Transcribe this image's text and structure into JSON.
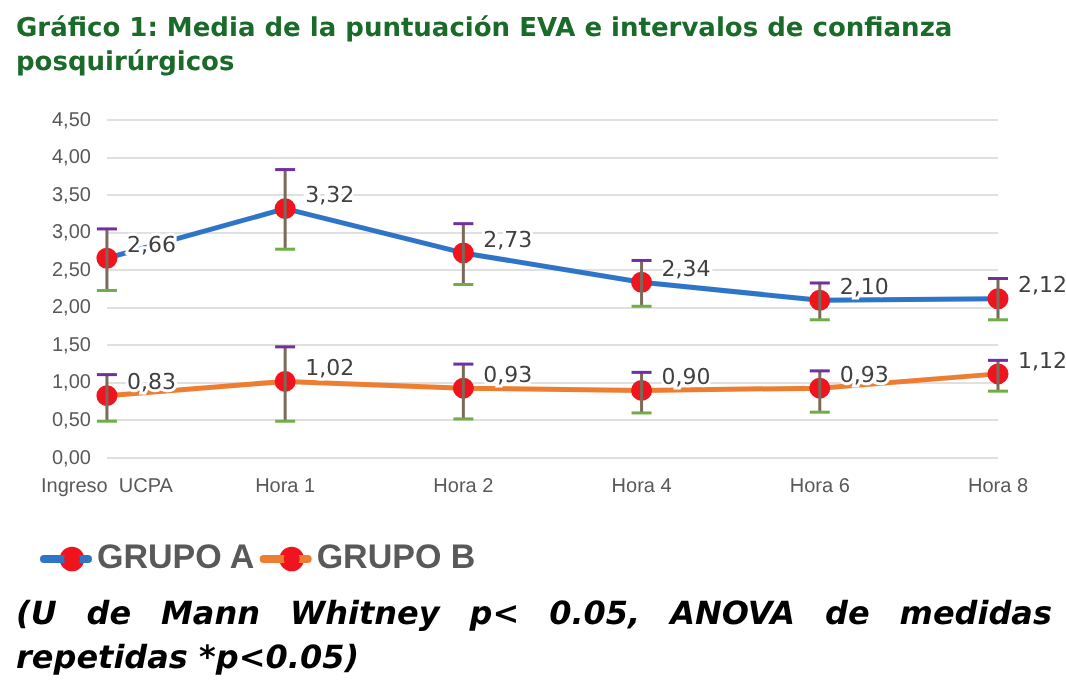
{
  "chart_data": {
    "type": "line",
    "title": "Gráfico 1: Media de la puntuación EVA e intervalos de confianza posquirúrgicos",
    "categories": [
      "Ingreso  UCPA",
      "Hora 1",
      "Hora 2",
      "Hora 4",
      "Hora 6",
      "Hora 8"
    ],
    "series": [
      {
        "name": "GRUPO A",
        "color": "#2e75c8",
        "values": [
          2.66,
          3.32,
          2.73,
          2.34,
          2.1,
          2.12
        ],
        "value_labels": [
          "2,66",
          "3,32",
          "2,73",
          "2,34",
          "2,10",
          "2,12"
        ],
        "errors": [
          [
            2.23,
            3.05
          ],
          [
            2.78,
            3.84
          ],
          [
            2.31,
            3.12
          ],
          [
            2.02,
            2.63
          ],
          [
            1.84,
            2.33
          ],
          [
            1.84,
            2.39
          ]
        ]
      },
      {
        "name": "GRUPO B",
        "color": "#ed7d31",
        "values": [
          0.83,
          1.02,
          0.93,
          0.9,
          0.93,
          1.12
        ],
        "value_labels": [
          "0,83",
          "1,02",
          "0,93",
          "0,90",
          "0,93",
          "1,12"
        ],
        "errors": [
          [
            0.49,
            1.11
          ],
          [
            0.49,
            1.48
          ],
          [
            0.52,
            1.25
          ],
          [
            0.6,
            1.14
          ],
          [
            0.61,
            1.16
          ],
          [
            0.89,
            1.3
          ]
        ]
      }
    ],
    "ylim": [
      0,
      4.5
    ],
    "yticks": [
      {
        "value": 0,
        "label": "0,00"
      },
      {
        "value": 0.5,
        "label": "0,50"
      },
      {
        "value": 1,
        "label": "1,00"
      },
      {
        "value": 1.5,
        "label": "1,50"
      },
      {
        "value": 2,
        "label": "2,00"
      },
      {
        "value": 2.5,
        "label": "2,50"
      },
      {
        "value": 3,
        "label": "3,00"
      },
      {
        "value": 3.5,
        "label": "3,50"
      },
      {
        "value": 4,
        "label": "4,00"
      },
      {
        "value": 4.5,
        "label": "4,50"
      }
    ],
    "grid": "y",
    "legend": "bottom left",
    "marker": "circle",
    "line_style": "solid",
    "annotations": [
      "(U de Mann Whitney p< 0.05, ANOVA de medidas repetidas *p<0.05)"
    ]
  }
}
